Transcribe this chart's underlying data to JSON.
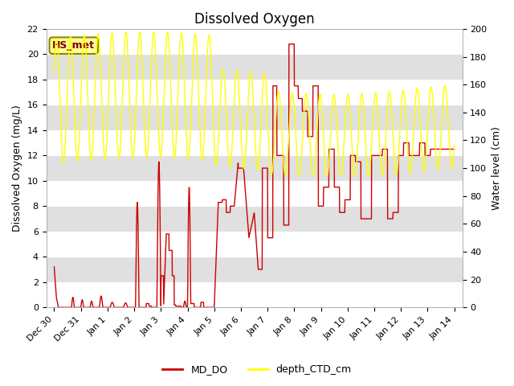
{
  "title": "Dissolved Oxygen",
  "ylabel_left": "Dissolved Oxygen (mg/L)",
  "ylabel_right": "Water level (cm)",
  "ylim_left": [
    0,
    22
  ],
  "ylim_right": [
    0,
    200
  ],
  "yticks_left": [
    0,
    2,
    4,
    6,
    8,
    10,
    12,
    14,
    16,
    18,
    20,
    22
  ],
  "yticks_right": [
    0,
    20,
    40,
    60,
    80,
    100,
    120,
    140,
    160,
    180,
    200
  ],
  "xlim_days": [
    -0.3,
    15.3
  ],
  "xtick_labels": [
    "Dec 30",
    "Dec 31",
    "Jan 1",
    "Jan 2",
    "Jan 3",
    "Jan 4",
    "Jan 5",
    "Jan 6",
    "Jan 7",
    "Jan 8",
    "Jan 9",
    "Jan 10",
    "Jan 11",
    "Jan 12",
    "Jan 13",
    "Jan 14"
  ],
  "xtick_positions": [
    0,
    1,
    2,
    3,
    4,
    5,
    6,
    7,
    8,
    9,
    10,
    11,
    12,
    13,
    14,
    15
  ],
  "color_DO": "#cc0000",
  "color_depth": "#ffff00",
  "legend_label_DO": "MD_DO",
  "legend_label_depth": "depth_CTD_cm",
  "annotation_text": "HS_met",
  "annotation_color": "#800000",
  "annotation_bg": "#ffff99",
  "background_color": "#ffffff",
  "strip_colors": [
    "#ffffff",
    "#e0e0e0"
  ],
  "title_fontsize": 12,
  "axis_label_fontsize": 9,
  "tick_fontsize": 8
}
